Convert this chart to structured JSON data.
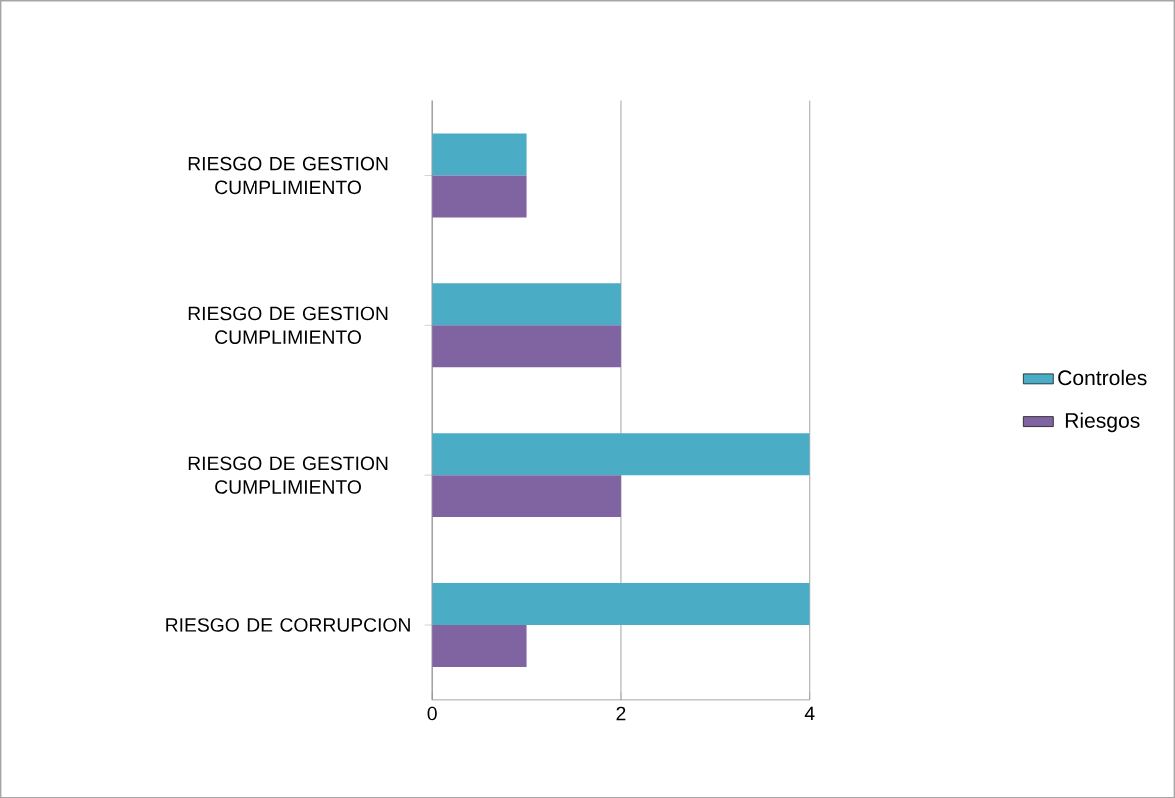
{
  "chart_data": {
    "type": "bar",
    "orientation": "horizontal",
    "categories": [
      "RIESGO DE GESTION CUMPLIMIENTO",
      "RIESGO DE GESTION CUMPLIMIENTO",
      "RIESGO DE GESTION CUMPLIMIENTO",
      "RIESGO DE CORRUPCION"
    ],
    "series": [
      {
        "name": "Controles",
        "color": "#4bacc6",
        "values": [
          1,
          2,
          4,
          4
        ]
      },
      {
        "name": "Riesgos",
        "color": "#8064a2",
        "values": [
          1,
          2,
          2,
          1
        ]
      }
    ],
    "xlim": [
      0,
      4
    ],
    "xticks": [
      0,
      2,
      4
    ],
    "grid": "x",
    "legend": "right"
  }
}
